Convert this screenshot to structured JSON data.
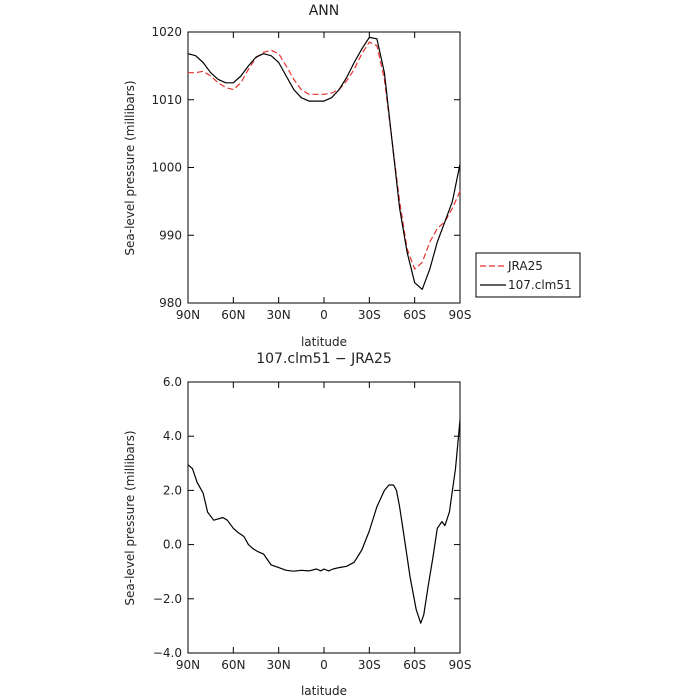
{
  "chart_data": [
    {
      "type": "line",
      "title": "ANN",
      "xlabel": "latitude",
      "ylabel": "Sea-level pressure (millibars)",
      "xlim": [
        90,
        -90
      ],
      "ylim": [
        980,
        1020
      ],
      "xticks": [
        90,
        60,
        30,
        0,
        -30,
        -60,
        -90
      ],
      "xtick_labels": [
        "90N",
        "60N",
        "30N",
        "0",
        "30S",
        "60S",
        "90S"
      ],
      "yticks": [
        980,
        990,
        1000,
        1010,
        1020
      ],
      "ytick_labels": [
        "980",
        "990",
        "1000",
        "1010",
        "1020"
      ],
      "legend_position": "outside-right",
      "series": [
        {
          "name": "JRA25",
          "color": "#e8322e",
          "dash": "dashed",
          "x": [
            90,
            85,
            80,
            75,
            70,
            65,
            60,
            55,
            50,
            45,
            40,
            35,
            30,
            25,
            20,
            15,
            10,
            5,
            0,
            -5,
            -10,
            -15,
            -20,
            -25,
            -30,
            -35,
            -40,
            -45,
            -50,
            -55,
            -60,
            -65,
            -70,
            -75,
            -80,
            -85,
            -90
          ],
          "y": [
            1014.0,
            1014.0,
            1014.2,
            1013.5,
            1012.5,
            1011.8,
            1011.5,
            1012.5,
            1014.5,
            1016.2,
            1017.0,
            1017.3,
            1016.8,
            1015.0,
            1013.0,
            1011.5,
            1010.8,
            1010.8,
            1010.8,
            1011.0,
            1011.5,
            1012.8,
            1014.5,
            1016.8,
            1018.5,
            1018.0,
            1013.0,
            1004.0,
            995.0,
            988.0,
            985.0,
            986.0,
            989.0,
            991.0,
            992.0,
            994.0,
            996.5
          ]
        },
        {
          "name": "107.clm51",
          "color": "#000000",
          "dash": "solid",
          "x": [
            90,
            85,
            80,
            75,
            70,
            65,
            60,
            55,
            50,
            45,
            40,
            35,
            30,
            25,
            20,
            15,
            10,
            5,
            0,
            -5,
            -10,
            -15,
            -20,
            -25,
            -30,
            -35,
            -40,
            -45,
            -50,
            -55,
            -60,
            -65,
            -70,
            -75,
            -80,
            -85,
            -90
          ],
          "y": [
            1016.8,
            1016.5,
            1015.5,
            1014.0,
            1013.0,
            1012.5,
            1012.5,
            1013.5,
            1015.0,
            1016.3,
            1016.8,
            1016.5,
            1015.5,
            1013.5,
            1011.5,
            1010.3,
            1009.8,
            1009.8,
            1009.8,
            1010.3,
            1011.5,
            1013.3,
            1015.5,
            1017.5,
            1019.2,
            1019.0,
            1014.0,
            1004.0,
            994.0,
            987.5,
            983.0,
            982.0,
            985.0,
            989.0,
            992.0,
            995.0,
            1000.5
          ]
        }
      ]
    },
    {
      "type": "line",
      "title": "107.clm51 − JRA25",
      "xlabel": "latitude",
      "ylabel": "Sea-level pressure (millibars)",
      "xlim": [
        90,
        -90
      ],
      "ylim": [
        -4,
        6
      ],
      "xticks": [
        90,
        60,
        30,
        0,
        -30,
        -60,
        -90
      ],
      "xtick_labels": [
        "90N",
        "60N",
        "30N",
        "0",
        "30S",
        "60S",
        "90S"
      ],
      "yticks": [
        -4,
        -2,
        0,
        2,
        4,
        6
      ],
      "ytick_labels": [
        "−4.0",
        "−2.0",
        "0.0",
        "2.0",
        "4.0",
        "6.0"
      ],
      "series": [
        {
          "color": "#000000",
          "dash": "solid",
          "x": [
            90,
            87,
            84,
            80,
            77,
            73,
            70,
            67,
            64,
            60,
            57,
            53,
            50,
            47,
            44,
            40,
            35,
            30,
            25,
            20,
            15,
            10,
            5,
            2,
            0,
            -3,
            -6,
            -10,
            -15,
            -20,
            -25,
            -30,
            -35,
            -40,
            -43,
            -46,
            -48,
            -50,
            -53,
            -57,
            -61,
            -64,
            -66,
            -69,
            -72,
            -75,
            -78,
            -80,
            -83,
            -85,
            -87,
            -90
          ],
          "y": [
            2.95,
            2.8,
            2.3,
            1.9,
            1.2,
            0.9,
            0.95,
            1.0,
            0.9,
            0.6,
            0.45,
            0.3,
            0.0,
            -0.15,
            -0.25,
            -0.35,
            -0.75,
            -0.85,
            -0.95,
            -0.98,
            -0.95,
            -0.97,
            -0.9,
            -0.97,
            -0.9,
            -0.97,
            -0.9,
            -0.85,
            -0.8,
            -0.65,
            -0.2,
            0.5,
            1.4,
            2.0,
            2.2,
            2.2,
            2.0,
            1.4,
            0.3,
            -1.2,
            -2.4,
            -2.9,
            -2.6,
            -1.5,
            -0.5,
            0.6,
            0.85,
            0.7,
            1.2,
            2.0,
            2.8,
            4.6
          ]
        }
      ]
    }
  ]
}
